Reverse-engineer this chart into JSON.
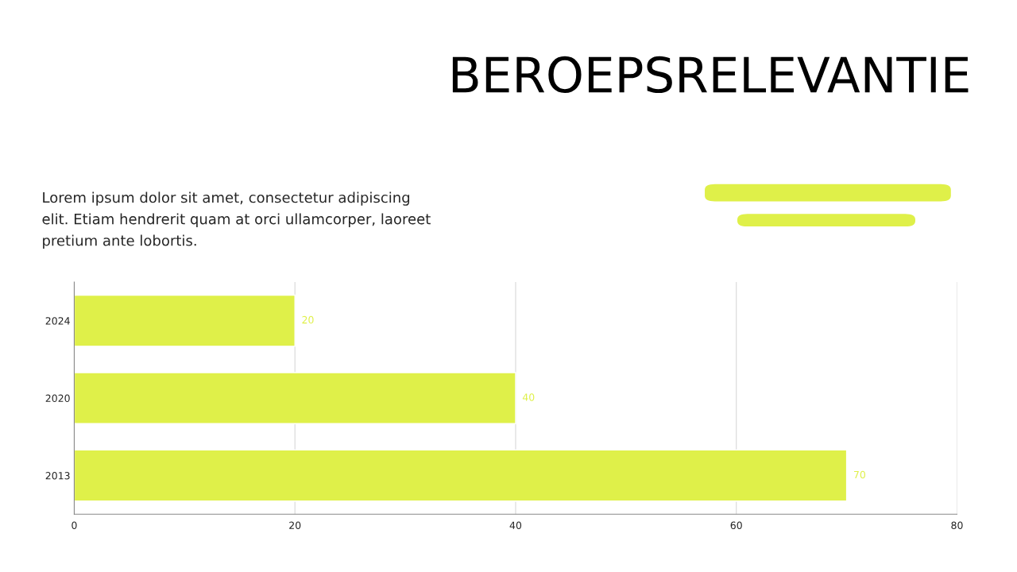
{
  "chart_data": {
    "type": "bar",
    "orientation": "horizontal",
    "title": "BEROEPSRELEVANTIE",
    "annotations": [
      "Lorem ipsum dolor sit amet, consectetur adipiscing\nelit. Etiam hendrerit quam at orci ullamcorper, laoreet\npretium ante lobortis."
    ],
    "categories": [
      "2024",
      "2020",
      "2013"
    ],
    "values": [
      20,
      40,
      70
    ],
    "color": "#dff049",
    "xlim": [
      0,
      80
    ],
    "xticks": [
      0,
      20,
      40,
      60,
      80
    ],
    "grid": "x",
    "data_labels": true
  }
}
